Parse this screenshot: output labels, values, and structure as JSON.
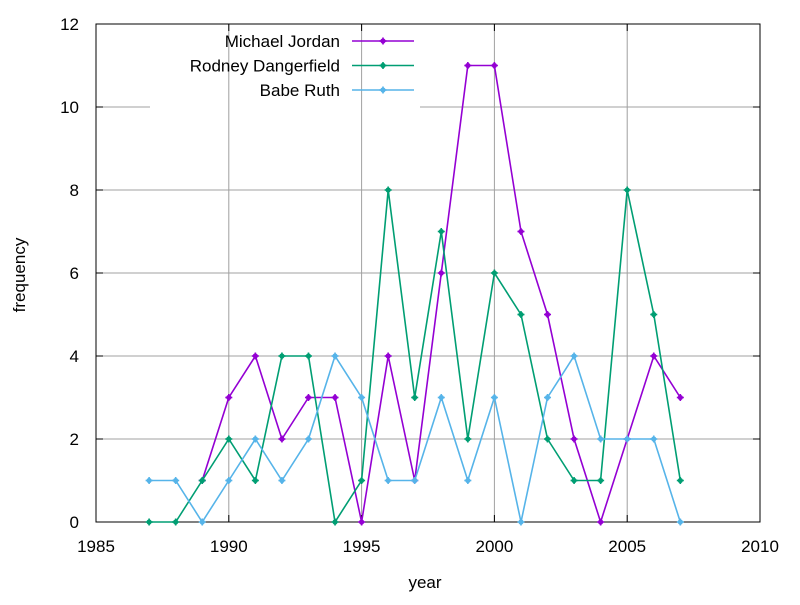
{
  "chart_data": {
    "type": "line",
    "title": "",
    "xlabel": "year",
    "ylabel": "frequency",
    "xlim": [
      1985,
      2010
    ],
    "ylim": [
      0,
      12
    ],
    "xticks": [
      1985,
      1990,
      1995,
      2000,
      2005,
      2010
    ],
    "yticks": [
      0,
      2,
      4,
      6,
      8,
      10,
      12
    ],
    "grid": true,
    "legend_position": "top-left inside",
    "series": [
      {
        "name": "Michael Jordan",
        "color": "#9400d3",
        "x": [
          1989,
          1990,
          1991,
          1992,
          1993,
          1994,
          1995,
          1996,
          1997,
          1998,
          1999,
          2000,
          2001,
          2002,
          2003,
          2004,
          2005,
          2006,
          2007
        ],
        "y": [
          1,
          3,
          4,
          2,
          3,
          3,
          0,
          4,
          1,
          6,
          11,
          11,
          7,
          5,
          2,
          0,
          2,
          4,
          3
        ]
      },
      {
        "name": "Rodney Dangerfield",
        "color": "#009e73",
        "x": [
          1987,
          1988,
          1989,
          1990,
          1991,
          1992,
          1993,
          1994,
          1995,
          1996,
          1997,
          1998,
          1999,
          2000,
          2001,
          2002,
          2003,
          2004,
          2005,
          2006,
          2007
        ],
        "y": [
          0,
          0,
          1,
          2,
          1,
          4,
          4,
          0,
          1,
          8,
          3,
          7,
          2,
          6,
          5,
          2,
          1,
          1,
          8,
          5,
          1
        ]
      },
      {
        "name": "Babe Ruth",
        "color": "#56b4e9",
        "x": [
          1987,
          1988,
          1989,
          1990,
          1991,
          1992,
          1993,
          1994,
          1995,
          1996,
          1997,
          1998,
          1999,
          2000,
          2001,
          2002,
          2003,
          2004,
          2005,
          2006,
          2007
        ],
        "y": [
          1,
          1,
          0,
          1,
          2,
          1,
          2,
          4,
          3,
          1,
          1,
          3,
          1,
          3,
          0,
          3,
          4,
          2,
          2,
          2,
          0
        ]
      }
    ]
  }
}
